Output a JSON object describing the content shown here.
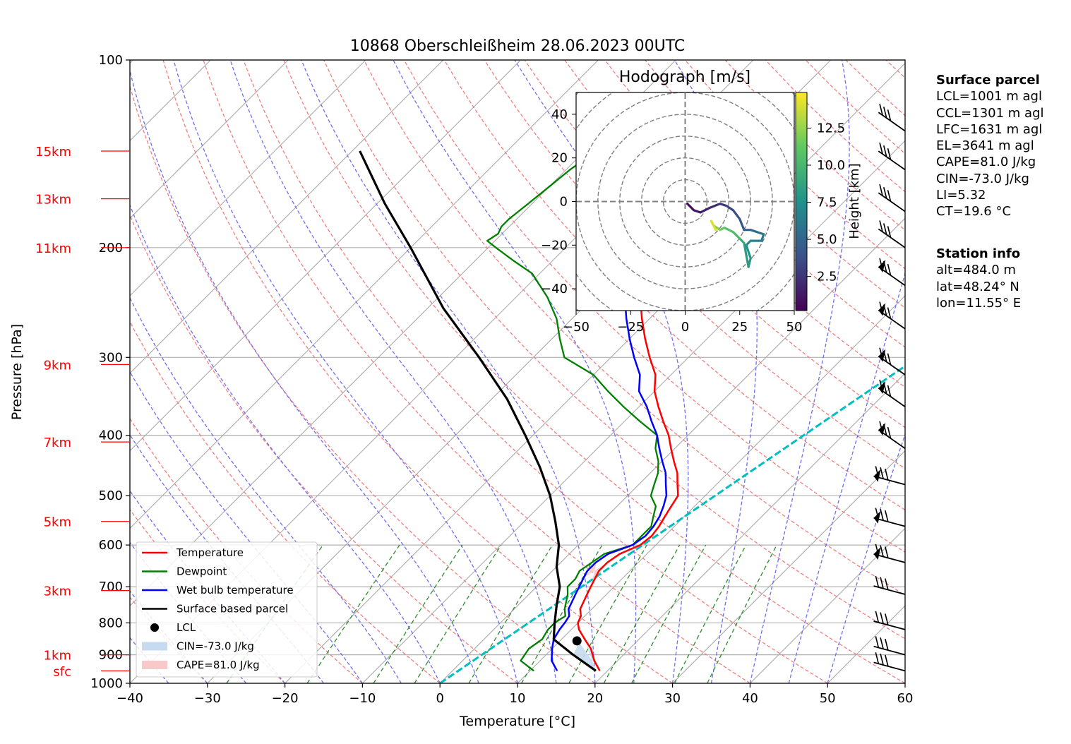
{
  "chart_data": {
    "type": "line",
    "title": "10868 Oberschleißheim 28.06.2023 00UTC",
    "xlabel": "Temperature [°C]",
    "ylabel": "Pressure [hPa]",
    "xlim": [
      -40,
      60
    ],
    "ylim": [
      1000,
      100
    ],
    "y_scale": "log",
    "skew": true,
    "x_ticks": [
      "−40",
      "−30",
      "−20",
      "−10",
      "0",
      "10",
      "20",
      "30",
      "40",
      "50",
      "60"
    ],
    "y_ticks": [
      {
        "p": 100,
        "label": "100"
      },
      {
        "p": 200,
        "label": "200"
      },
      {
        "p": 300,
        "label": "300"
      },
      {
        "p": 400,
        "label": "400"
      },
      {
        "p": 500,
        "label": "500"
      },
      {
        "p": 600,
        "label": "600"
      },
      {
        "p": 700,
        "label": "700"
      },
      {
        "p": 800,
        "label": "800"
      },
      {
        "p": 900,
        "label": "900"
      },
      {
        "p": 1000,
        "label": "1000"
      }
    ],
    "height_labels": [
      {
        "p": 140,
        "label": "15km"
      },
      {
        "p": 167,
        "label": "13km"
      },
      {
        "p": 200,
        "label": "11km"
      },
      {
        "p": 308,
        "label": "9km"
      },
      {
        "p": 410,
        "label": "7km"
      },
      {
        "p": 550,
        "label": "5km"
      },
      {
        "p": 710,
        "label": "3km"
      },
      {
        "p": 900,
        "label": "1km"
      },
      {
        "p": 955,
        "label": "sfc"
      }
    ],
    "series": [
      {
        "name": "Temperature",
        "color": "#ff0000",
        "p": [
          955,
          920,
          880,
          850,
          820,
          800,
          780,
          760,
          720,
          700,
          680,
          660,
          640,
          620,
          600,
          580,
          560,
          540,
          520,
          500,
          480,
          460,
          440,
          420,
          400,
          380,
          360,
          340,
          320,
          300,
          280,
          260,
          240,
          220,
          210,
          200,
          195,
          190,
          185,
          180,
          170,
          160,
          150,
          145,
          140
        ],
        "t": [
          19,
          17,
          15,
          13,
          11,
          10,
          9.5,
          8.5,
          7.5,
          7,
          6.5,
          6,
          6,
          6.5,
          8,
          8.3,
          8,
          7.5,
          7,
          6.5,
          5,
          3.5,
          1.5,
          -0.5,
          -2.5,
          -5,
          -7.5,
          -10,
          -12,
          -15,
          -18,
          -21,
          -24,
          -28,
          -30,
          -33,
          -33.5,
          -33,
          -32,
          -30,
          -29,
          -27.5,
          -26,
          -24.5,
          -23.5
        ]
      },
      {
        "name": "Dewpoint",
        "color": "#008000",
        "p": [
          955,
          920,
          880,
          850,
          820,
          800,
          780,
          760,
          720,
          700,
          680,
          660,
          640,
          620,
          600,
          580,
          560,
          540,
          520,
          500,
          480,
          460,
          440,
          420,
          400,
          380,
          360,
          340,
          320,
          300,
          280,
          260,
          240,
          220,
          210,
          200,
          195,
          190,
          185,
          180,
          170,
          160,
          150,
          145,
          140
        ],
        "t": [
          10.5,
          7.5,
          7,
          7.5,
          7,
          7,
          7.5,
          6.5,
          5,
          4,
          4,
          3.5,
          4,
          4.5,
          7,
          7,
          7,
          6,
          5,
          3,
          2,
          1,
          -0.5,
          -2.5,
          -4,
          -8,
          -12,
          -16,
          -20,
          -26,
          -29,
          -32,
          -36,
          -41,
          -45,
          -49,
          -51,
          -50.5,
          -51,
          -51,
          -50.5,
          -50,
          -49.5,
          -49,
          -48.5
        ]
      },
      {
        "name": "Wet bulb temperature",
        "color": "#0000ff",
        "p": [
          955,
          920,
          880,
          850,
          820,
          800,
          780,
          760,
          720,
          700,
          680,
          660,
          640,
          620,
          600,
          580,
          560,
          540,
          520,
          500,
          480,
          460,
          440,
          420,
          400,
          380,
          360,
          340,
          320,
          300,
          280,
          260,
          240,
          220,
          210,
          200,
          195,
          190,
          185,
          180,
          170,
          160,
          150,
          145,
          140
        ],
        "t": [
          13.5,
          11.5,
          10,
          9,
          8.5,
          8.3,
          8,
          7,
          6,
          5.5,
          5,
          4.5,
          4.5,
          5,
          7,
          7.5,
          7.3,
          6.8,
          6,
          5,
          3.5,
          2,
          0,
          -2,
          -4,
          -6.5,
          -9,
          -12,
          -14,
          -17,
          -20,
          -23,
          -26,
          -30,
          -32,
          -34.5,
          -35,
          -34,
          -33,
          -31,
          -30,
          -28.5,
          -27,
          -25.5,
          -24.5
        ]
      },
      {
        "name": "Surface based parcel",
        "color": "#000000",
        "p": [
          955,
          900,
          850,
          800,
          750,
          700,
          650,
          600,
          550,
          500,
          450,
          400,
          350,
          300,
          250,
          200,
          170,
          140
        ],
        "t": [
          18.5,
          13.5,
          9,
          7,
          5,
          3,
          0,
          -2.5,
          -6,
          -10,
          -15,
          -21,
          -28,
          -37,
          -48,
          -60,
          -69,
          -79
        ]
      }
    ],
    "lcl": {
      "t": 12.2,
      "p": 855
    },
    "legend": [
      "Temperature",
      "Dewpoint",
      "Wet bulb temperature",
      "Surface based parcel",
      "LCL",
      "CIN=-73.0 J/kg",
      "CAPE=81.0 J/kg"
    ],
    "legend_placement": "bottom-left",
    "grid": true
  },
  "hodograph": {
    "title": "Hodograph [m/s]",
    "xlim": [
      -50,
      50
    ],
    "ylim": [
      -50,
      50
    ],
    "x_ticks": [
      "−50",
      "−25",
      "0",
      "25",
      "50"
    ],
    "y_ticks": [
      "40",
      "20",
      "0",
      "−20",
      "−40"
    ],
    "colorbar_label": "Height [km]",
    "colorbar_ticks": [
      "2.5",
      "5.0",
      "7.5",
      "10.0",
      "12.5"
    ],
    "u": [
      1,
      4,
      7,
      11,
      16,
      19,
      22,
      25,
      27,
      30,
      33,
      36,
      35,
      30,
      28,
      30,
      29,
      27,
      25,
      22,
      18,
      16,
      13,
      12,
      14
    ],
    "v": [
      -1,
      -4,
      -5,
      -3,
      -1,
      -2,
      -4,
      -8,
      -13,
      -13,
      -14,
      -15,
      -18,
      -18,
      -20,
      -26,
      -30,
      -19,
      -17,
      -14,
      -12,
      -13,
      -11,
      -9,
      -13
    ],
    "h": [
      0.5,
      1.0,
      1.5,
      2.0,
      2.5,
      3.0,
      3.5,
      4.0,
      4.5,
      5.0,
      5.5,
      6.0,
      6.5,
      7.0,
      7.5,
      7.8,
      8.0,
      9.0,
      10.0,
      10.5,
      11.0,
      12.0,
      13.0,
      14.0,
      14.5
    ]
  },
  "surface_parcel": {
    "header": "Surface parcel",
    "lines": [
      "LCL=1001 m agl",
      "CCL=1301 m agl",
      "LFC=1631 m agl",
      "EL=3641 m agl",
      "CAPE=81.0 J/kg",
      "CIN=-73.0 J/kg",
      "LI=5.32",
      "CT=19.6 °C"
    ]
  },
  "station_info": {
    "header": "Station info",
    "lines": [
      "alt=484.0 m",
      "lat=48.24° N",
      "lon=11.55° E"
    ]
  },
  "colors": {
    "temperature": "#ff0000",
    "dewpoint": "#008000",
    "wetbulb": "#0000ff",
    "parcel": "#000000",
    "lcl_line": "#00bfbf",
    "cin_fill": "#c6dbef",
    "cape_fill": "#f7c9c9"
  }
}
